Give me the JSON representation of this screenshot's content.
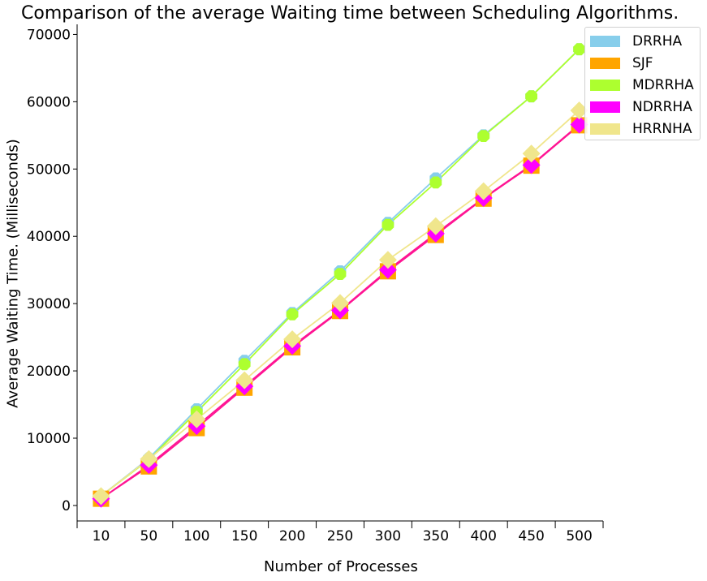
{
  "chart_data": {
    "type": "line",
    "title": "Comparison of the average Waiting time between Scheduling Algorithms.",
    "xlabel": "Number of Processes",
    "ylabel": "Average Waiting Time. (Milliseconds)",
    "categories": [
      "10",
      "50",
      "100",
      "150",
      "200",
      "250",
      "300",
      "350",
      "400",
      "450",
      "500"
    ],
    "yticks": [
      "0",
      "10000",
      "20000",
      "30000",
      "40000",
      "50000",
      "60000",
      "70000"
    ],
    "ylim": [
      -2300,
      71500
    ],
    "grid": false,
    "legend_position": "top-right",
    "series": [
      {
        "name": "DRRHA",
        "color": "#87ceeb",
        "marker": "circle",
        "values": [
          1400,
          7000,
          14300,
          21500,
          28600,
          34800,
          42000,
          48600,
          55000,
          60800,
          67800
        ]
      },
      {
        "name": "SJF",
        "color": "#ffa500",
        "marker": "square",
        "values": [
          1000,
          5800,
          11500,
          17500,
          23500,
          28900,
          34800,
          40200,
          45600,
          50500,
          56500
        ]
      },
      {
        "name": "MDRRHA",
        "color": "#adff2f",
        "marker": "circle",
        "values": [
          1400,
          6800,
          13900,
          21000,
          28400,
          34400,
          41700,
          48000,
          54900,
          60800,
          67800
        ]
      },
      {
        "name": "NDRRHA",
        "color": "#ff00ff",
        "marker": "diamond",
        "values": [
          1000,
          6000,
          11800,
          17700,
          23700,
          29000,
          35000,
          40400,
          45700,
          50600,
          56600
        ]
      },
      {
        "name": "HRRNHA",
        "color": "#f0e68c",
        "marker": "diamond",
        "values": [
          1400,
          6900,
          12800,
          18600,
          24700,
          30100,
          36500,
          41500,
          46700,
          52300,
          58700
        ]
      }
    ],
    "line_color": "#ff1493"
  }
}
